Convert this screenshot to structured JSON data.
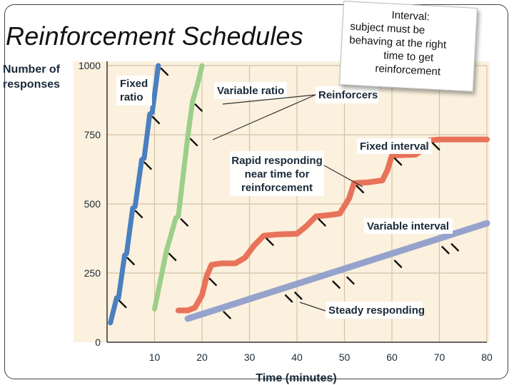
{
  "slide": {
    "title": "Reinforcement Schedules",
    "note_lines": [
      "Interval:",
      "subject must be",
      "behaving at the right",
      "time to get",
      "reinforcement"
    ]
  },
  "colors": {
    "plot_bg": "#fbf1de",
    "grid": "#d4c4a8",
    "fixed_ratio": "#4a7fc0",
    "variable_ratio": "#9ccf8a",
    "fixed_interval": "#e8735a",
    "variable_interval": "#95a3cc",
    "reinforcer_tick": "#111111"
  },
  "chart_data": {
    "type": "line",
    "xlabel": "Time (minutes)",
    "ylabel_lines": [
      "Number of",
      "responses"
    ],
    "xlim": [
      0,
      80
    ],
    "ylim": [
      0,
      1000
    ],
    "x_ticks": [
      10,
      20,
      30,
      40,
      50,
      60,
      70,
      80
    ],
    "y_ticks": [
      0,
      250,
      500,
      750,
      1000
    ],
    "grid": true,
    "series": [
      {
        "key": "fixed_ratio",
        "name_lines": [
          "Fixed",
          "ratio"
        ],
        "points": [
          [
            0.7,
            70
          ],
          [
            2.0,
            160
          ],
          [
            2.4,
            160
          ],
          [
            3.7,
            315
          ],
          [
            4.1,
            320
          ],
          [
            5.4,
            485
          ],
          [
            5.9,
            490
          ],
          [
            7.3,
            660
          ],
          [
            7.8,
            665
          ],
          [
            9.0,
            825
          ],
          [
            9.5,
            830
          ],
          [
            10.8,
            1000
          ]
        ],
        "reinforcers": [
          [
            2.0,
            160
          ],
          [
            3.7,
            315
          ],
          [
            5.4,
            485
          ],
          [
            7.3,
            660
          ],
          [
            9.0,
            825
          ],
          [
            10.8,
            1000
          ]
        ]
      },
      {
        "key": "variable_ratio",
        "name_lines": [
          "Variable ratio"
        ],
        "points": [
          [
            10.0,
            120
          ],
          [
            12.5,
            330
          ],
          [
            14.5,
            450
          ],
          [
            15.0,
            455
          ],
          [
            17.0,
            745
          ],
          [
            18.0,
            870
          ],
          [
            19.0,
            930
          ],
          [
            20.0,
            1000
          ]
        ],
        "reinforcers": [
          [
            12.5,
            330
          ],
          [
            15.0,
            455
          ],
          [
            17.0,
            745
          ],
          [
            18.0,
            870
          ]
        ]
      },
      {
        "key": "fixed_interval",
        "name_lines": [
          "Fixed interval"
        ],
        "points": [
          [
            15,
            115
          ],
          [
            17,
            115
          ],
          [
            18.5,
            125
          ],
          [
            20,
            170
          ],
          [
            21,
            240
          ],
          [
            22,
            280
          ],
          [
            24,
            285
          ],
          [
            27,
            285
          ],
          [
            29,
            305
          ],
          [
            31,
            350
          ],
          [
            33,
            385
          ],
          [
            36,
            390
          ],
          [
            40,
            392
          ],
          [
            42,
            420
          ],
          [
            44,
            455
          ],
          [
            47,
            460
          ],
          [
            49,
            465
          ],
          [
            51,
            520
          ],
          [
            52,
            575
          ],
          [
            55,
            578
          ],
          [
            58,
            585
          ],
          [
            59,
            620
          ],
          [
            60,
            675
          ],
          [
            65,
            678
          ],
          [
            66,
            690
          ],
          [
            68,
            730
          ],
          [
            70,
            733
          ],
          [
            80,
            733
          ]
        ],
        "reinforcers": [
          [
            21,
            240
          ],
          [
            33,
            385
          ],
          [
            44,
            455
          ],
          [
            52,
            575
          ],
          [
            60,
            675
          ],
          [
            68,
            730
          ]
        ]
      },
      {
        "key": "variable_interval",
        "name_lines": [
          "Variable interval"
        ],
        "points": [
          [
            17,
            85
          ],
          [
            80,
            430
          ]
        ],
        "reinforcers": [
          [
            24,
            120
          ],
          [
            37,
            180
          ],
          [
            39,
            190
          ],
          [
            47,
            230
          ],
          [
            50,
            245
          ],
          [
            60,
            305
          ],
          [
            70,
            355
          ],
          [
            72,
            365
          ]
        ]
      }
    ],
    "annotations": [
      {
        "key": "reinforcers",
        "lines": [
          "Reinforcers"
        ]
      },
      {
        "key": "rapid_responding",
        "lines": [
          "Rapid responding",
          "near time for",
          "reinforcement"
        ]
      },
      {
        "key": "steady_responding",
        "lines": [
          "Steady responding"
        ]
      }
    ]
  }
}
